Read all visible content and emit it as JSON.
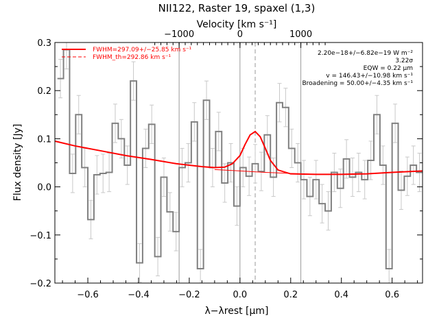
{
  "chart_data": {
    "type": "line",
    "title": "NII122, Raster 19, spaxel (1,3)",
    "xlabel": "λ−λrest [μm]",
    "ylabel": "Flux density [Jy]",
    "top_xlabel": "Velocity [km s⁻¹]",
    "xlim": [
      -0.73,
      0.72
    ],
    "ylim": [
      -0.2,
      0.3
    ],
    "x_ticks": [
      -0.6,
      -0.4,
      -0.2,
      0.0,
      0.2,
      0.4,
      0.6
    ],
    "x_tick_labels": [
      "−0.6",
      "−0.4",
      "−0.2",
      "0.0",
      "0.2",
      "0.4",
      "0.6"
    ],
    "y_ticks": [
      -0.2,
      -0.1,
      0.0,
      0.1,
      0.2,
      0.3
    ],
    "y_tick_labels": [
      "−0.2",
      "−0.1",
      "0.0",
      "0.1",
      "0.2",
      "0.3"
    ],
    "top_x_ticks": [
      -0.24,
      0.0,
      0.24
    ],
    "top_x_tick_labels": [
      "−1000",
      "0",
      "1000"
    ],
    "grid": false,
    "legend_position": "top-left",
    "annotation_position": "top-right",
    "vertical_lines": {
      "solid_gray": [
        -0.24,
        0.0,
        0.24
      ],
      "dashed_gray": [
        0.06
      ]
    },
    "legend": [
      {
        "label": "FWHM=297.09+/−25.85 km s⁻¹",
        "style": "solid",
        "color": "#ff0000"
      },
      {
        "label": "FWHM_th=292.86 km s⁻¹",
        "style": "dashed",
        "color": "#ff0000"
      }
    ],
    "annotations": [
      "2.20e−18+/−6.82e−19 W m⁻²",
      "3.22σ",
      "EQW = 0.22 μm",
      "v = 146.43+/−10.98 km s⁻¹",
      "Broadening = 50.00+/−4.35 km s⁻¹"
    ],
    "series": [
      {
        "style": "histogram-step",
        "color": "#808080",
        "bin_width": 0.024,
        "x": [
          -0.708,
          -0.684,
          -0.66,
          -0.636,
          -0.612,
          -0.588,
          -0.564,
          -0.54,
          -0.516,
          -0.492,
          -0.468,
          -0.444,
          -0.42,
          -0.396,
          -0.372,
          -0.348,
          -0.324,
          -0.3,
          -0.276,
          -0.252,
          -0.228,
          -0.204,
          -0.18,
          -0.156,
          -0.132,
          -0.108,
          -0.084,
          -0.06,
          -0.036,
          -0.012,
          0.012,
          0.036,
          0.06,
          0.084,
          0.108,
          0.132,
          0.156,
          0.18,
          0.204,
          0.228,
          0.252,
          0.276,
          0.3,
          0.324,
          0.348,
          0.372,
          0.396,
          0.42,
          0.444,
          0.468,
          0.492,
          0.516,
          0.54,
          0.564,
          0.588,
          0.612,
          0.636,
          0.66,
          0.684,
          0.708
        ],
        "y": [
          0.225,
          0.285,
          0.028,
          0.15,
          0.04,
          -0.068,
          0.025,
          0.028,
          0.03,
          0.132,
          0.1,
          0.045,
          0.22,
          -0.158,
          0.08,
          0.13,
          -0.145,
          0.02,
          -0.052,
          -0.093,
          0.04,
          0.05,
          0.135,
          -0.17,
          0.18,
          0.04,
          0.115,
          0.008,
          0.05,
          -0.04,
          0.04,
          0.022,
          0.048,
          0.032,
          0.108,
          0.02,
          0.175,
          0.165,
          0.08,
          0.05,
          0.015,
          -0.02,
          0.015,
          -0.035,
          -0.05,
          0.03,
          -0.003,
          0.058,
          0.02,
          0.03,
          0.015,
          0.055,
          0.15,
          0.045,
          -0.17,
          0.132,
          -0.007,
          0.022,
          0.045,
          0.03
        ],
        "err": [
          0.04,
          0.04,
          0.04,
          0.04,
          0.04,
          0.04,
          0.04,
          0.04,
          0.04,
          0.04,
          0.04,
          0.04,
          0.04,
          0.04,
          0.04,
          0.04,
          0.04,
          0.04,
          0.04,
          0.04,
          0.04,
          0.04,
          0.04,
          0.04,
          0.04,
          0.04,
          0.04,
          0.04,
          0.04,
          0.04,
          0.04,
          0.04,
          0.04,
          0.04,
          0.04,
          0.04,
          0.04,
          0.04,
          0.04,
          0.04,
          0.04,
          0.04,
          0.04,
          0.04,
          0.04,
          0.04,
          0.04,
          0.04,
          0.04,
          0.04,
          0.04,
          0.04,
          0.04,
          0.04,
          0.04,
          0.04,
          0.04,
          0.04,
          0.04,
          0.04
        ]
      },
      {
        "style": "fit-total",
        "color": "#ff0000",
        "x": [
          -0.73,
          -0.65,
          -0.55,
          -0.45,
          -0.35,
          -0.25,
          -0.15,
          -0.1,
          -0.06,
          -0.03,
          0.0,
          0.02,
          0.04,
          0.06,
          0.08,
          0.1,
          0.12,
          0.15,
          0.2,
          0.3,
          0.4,
          0.5,
          0.6,
          0.72
        ],
        "y": [
          0.095,
          0.085,
          0.075,
          0.065,
          0.057,
          0.048,
          0.042,
          0.04,
          0.041,
          0.048,
          0.065,
          0.088,
          0.108,
          0.115,
          0.104,
          0.08,
          0.055,
          0.035,
          0.027,
          0.026,
          0.026,
          0.027,
          0.03,
          0.033
        ]
      },
      {
        "style": "fit-baseline",
        "color": "#ff0000",
        "x": [
          -0.1,
          0.0,
          0.1,
          0.2,
          0.3,
          0.4,
          0.5,
          0.6,
          0.72
        ],
        "y": [
          0.036,
          0.033,
          0.03,
          0.028,
          0.026,
          0.026,
          0.027,
          0.03,
          0.033
        ]
      }
    ]
  }
}
